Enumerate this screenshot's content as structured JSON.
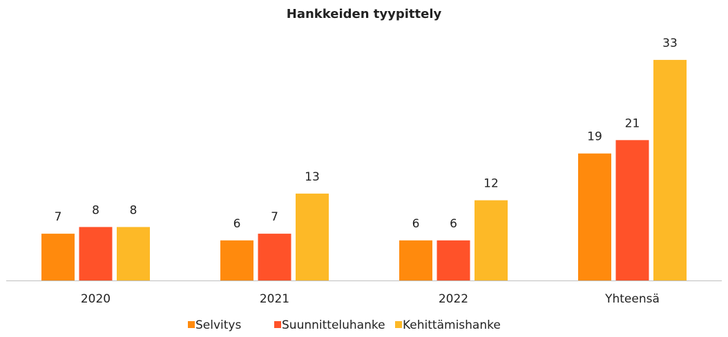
{
  "chart_data": {
    "type": "bar",
    "title": "Hankkeiden tyypittely",
    "categories": [
      "2020",
      "2021",
      "2022",
      "Yhteensä"
    ],
    "series": [
      {
        "name": "Selvitys",
        "color": "#ff8a0d",
        "values": [
          7,
          6,
          6,
          19
        ]
      },
      {
        "name": "Suunnitteluhanke",
        "color": "#ff5229",
        "values": [
          8,
          7,
          6,
          21
        ]
      },
      {
        "name": "Kehittämishanke",
        "color": "#fdb927",
        "values": [
          8,
          13,
          12,
          33
        ]
      }
    ],
    "ylim": [
      0,
      35
    ],
    "legend": "bottom"
  }
}
